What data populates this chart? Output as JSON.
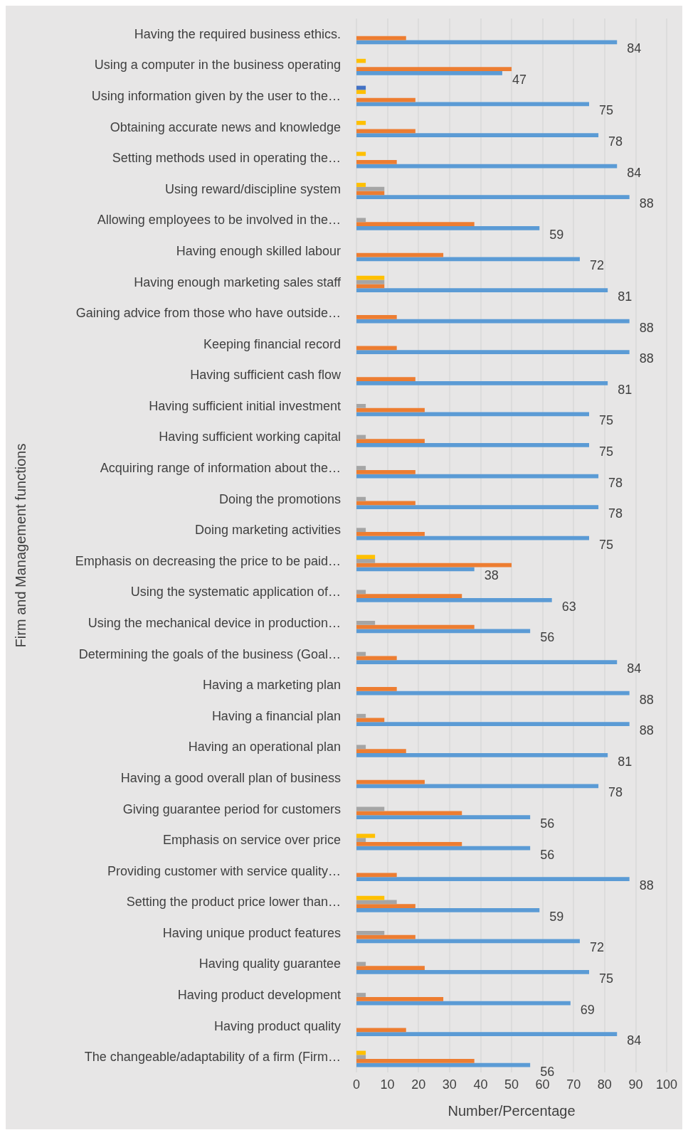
{
  "chart_data": {
    "type": "bar",
    "orientation": "horizontal",
    "xlabel": "Number/Percentage",
    "ylabel": "Firm and Management functions",
    "categories": [
      "Having the required business ethics.",
      "Using a computer in the business operating",
      "Using information given by the user to the…",
      "Obtaining accurate news and knowledge",
      "Setting methods used in operating the…",
      "Using reward/discipline system",
      "Allowing employees to be involved in the…",
      "Having enough skilled labour",
      "Having enough marketing sales staff",
      "Gaining advice from those who have outside…",
      "Keeping financial record",
      "Having sufficient cash flow",
      "Having sufficient initial investment",
      "Having sufficient working capital",
      "Acquiring range of information about the…",
      "Doing the promotions",
      "Doing marketing activities",
      "Emphasis on decreasing the price to be paid…",
      "Using the systematic application of…",
      "Using the mechanical device in production…",
      "Determining the goals of the business (Goal…",
      "Having a marketing plan",
      "Having a financial plan",
      "Having an operational plan",
      "Having a good overall plan of business",
      "Giving guarantee period for customers",
      "Emphasis on service over price",
      "Providing customer with service quality…",
      "Setting the product price lower than…",
      "Having unique product features",
      "Having quality guarantee",
      "Having product development",
      "Having product quality",
      "The changeable/adaptability of a firm (Firm…"
    ],
    "series": [
      {
        "color": "#5b9bd5",
        "values": [
          84,
          47,
          75,
          78,
          84,
          88,
          59,
          72,
          81,
          88,
          88,
          81,
          75,
          75,
          78,
          78,
          75,
          38,
          63,
          56,
          84,
          88,
          88,
          81,
          78,
          56,
          56,
          88,
          59,
          72,
          75,
          69,
          84,
          56
        ],
        "value_labels": [
          "84",
          "47",
          "75",
          "78",
          "84",
          "88",
          "59",
          "72",
          "81",
          "88",
          "88",
          "81",
          "75",
          "75",
          "78",
          "78",
          "75",
          "38",
          "63",
          "56",
          "84",
          "88",
          "88",
          "81",
          "78",
          "56",
          "56",
          "88",
          "59",
          "72",
          "75",
          "69",
          "84",
          "56"
        ]
      },
      {
        "color": "#ed7d31",
        "values": [
          16,
          50,
          19,
          19,
          13,
          9,
          38,
          28,
          9,
          13,
          13,
          19,
          22,
          22,
          19,
          19,
          22,
          50,
          34,
          38,
          13,
          13,
          9,
          16,
          22,
          34,
          34,
          13,
          19,
          19,
          22,
          28,
          16,
          38
        ]
      },
      {
        "color": "#a5a5a5",
        "values": [
          null,
          null,
          null,
          null,
          null,
          9,
          3,
          null,
          9,
          null,
          null,
          null,
          3,
          3,
          3,
          3,
          3,
          6,
          3,
          6,
          3,
          null,
          3,
          3,
          null,
          9,
          3,
          null,
          13,
          9,
          3,
          3,
          null,
          3
        ]
      },
      {
        "color": "#ffc000",
        "values": [
          null,
          3,
          3,
          3,
          3,
          3,
          null,
          null,
          9,
          null,
          null,
          null,
          null,
          null,
          null,
          null,
          null,
          6,
          null,
          null,
          null,
          null,
          null,
          null,
          null,
          null,
          6,
          null,
          9,
          null,
          null,
          null,
          null,
          3
        ]
      },
      {
        "color": "#4472c4",
        "values": [
          null,
          null,
          3,
          null,
          null,
          null,
          null,
          null,
          null,
          null,
          null,
          null,
          null,
          null,
          null,
          null,
          null,
          null,
          null,
          null,
          null,
          null,
          null,
          null,
          null,
          null,
          null,
          null,
          null,
          null,
          null,
          null,
          null,
          null
        ]
      }
    ],
    "xlim": [
      0,
      100
    ],
    "xticks": [
      0,
      10,
      20,
      30,
      40,
      50,
      60,
      70,
      80,
      90,
      100
    ],
    "grid": "x"
  }
}
